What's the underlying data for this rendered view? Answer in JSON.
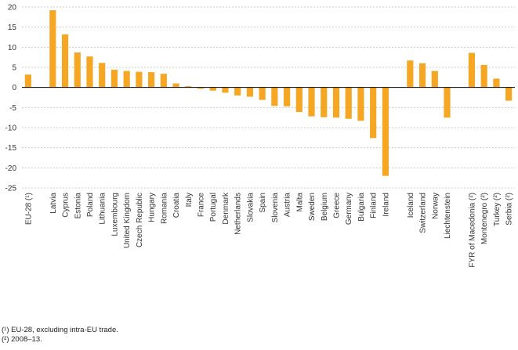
{
  "chart_data": {
    "type": "bar",
    "ylim": [
      -25,
      20
    ],
    "yticks": [
      20,
      15,
      10,
      5,
      0,
      -5,
      -10,
      -15,
      -20,
      -25
    ],
    "grid": true,
    "bar_color": "#f5a623",
    "categories": [
      "EU-28 (¹)",
      "Latvia",
      "Cyprus",
      "Estonia",
      "Poland",
      "Lithuania",
      "Luxembourg",
      "United Kingdom",
      "Czech Republic",
      "Hungary",
      "Romania",
      "Croatia",
      "Italy",
      "France",
      "Portugal",
      "Denmark",
      "Netherlands",
      "Slovakia",
      "Spain",
      "Slovenia",
      "Austria",
      "Malta",
      "Sweden",
      "Belgium",
      "Greece",
      "Germany",
      "Bulgaria",
      "Finland",
      "Ireland",
      "Iceland",
      "Switzerland",
      "Norway",
      "Liechtenstein",
      "FYR of Macedonia (²)",
      "Montenegro (²)",
      "Turkey (²)",
      "Serbia (²)"
    ],
    "groups": [
      1,
      28,
      4,
      4
    ],
    "values": [
      3.2,
      19.2,
      13.2,
      8.7,
      7.7,
      6.1,
      4.4,
      4.1,
      3.9,
      3.8,
      3.4,
      1.0,
      0.3,
      -0.3,
      -0.8,
      -1.3,
      -2.0,
      -2.3,
      -3.1,
      -4.6,
      -4.7,
      -6.1,
      -7.2,
      -7.4,
      -7.5,
      -7.8,
      -8.3,
      -12.6,
      -22.0,
      6.7,
      6.0,
      4.1,
      -7.5,
      8.6,
      5.6,
      2.2,
      -3.3
    ]
  },
  "footnotes": [
    "(¹) EU-28, excluding intra-EU trade.",
    "(²) 2008–13."
  ]
}
